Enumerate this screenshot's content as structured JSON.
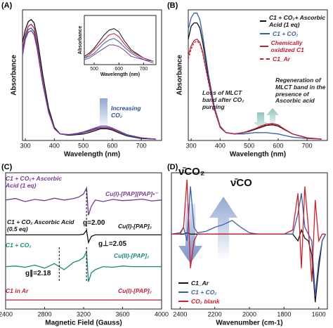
{
  "chart_data": [
    {
      "type": "line",
      "label": "(A)",
      "xlabel": "Wavelength (nm)",
      "ylabel": "Absorbance",
      "xlim": [
        290,
        770
      ],
      "xticks": [
        300,
        400,
        500,
        600,
        700
      ],
      "ylim": [
        0,
        2.0
      ],
      "x": [
        290,
        300,
        310,
        320,
        330,
        340,
        360,
        380,
        400,
        420,
        450,
        480,
        500,
        520,
        540,
        560,
        580,
        600,
        620,
        650,
        700,
        750
      ],
      "series": [
        {
          "color": "#111111",
          "values": [
            1.5,
            1.7,
            1.82,
            1.85,
            1.8,
            1.6,
            1.0,
            0.5,
            0.2,
            0.1,
            0.08,
            0.09,
            0.1,
            0.12,
            0.15,
            0.18,
            0.18,
            0.16,
            0.12,
            0.07,
            0.03,
            0.02
          ]
        },
        {
          "color": "#c0203a",
          "values": [
            1.4,
            1.62,
            1.75,
            1.78,
            1.72,
            1.5,
            0.9,
            0.45,
            0.18,
            0.1,
            0.09,
            0.1,
            0.12,
            0.14,
            0.17,
            0.19,
            0.19,
            0.17,
            0.13,
            0.08,
            0.04,
            0.02
          ]
        },
        {
          "color": "#3a5fb0",
          "values": [
            1.35,
            1.58,
            1.7,
            1.72,
            1.66,
            1.45,
            0.88,
            0.44,
            0.18,
            0.1,
            0.09,
            0.1,
            0.12,
            0.15,
            0.18,
            0.2,
            0.2,
            0.18,
            0.14,
            0.08,
            0.04,
            0.02
          ]
        },
        {
          "color": "#7a3a9a",
          "values": [
            1.3,
            1.55,
            1.66,
            1.68,
            1.62,
            1.42,
            0.86,
            0.43,
            0.18,
            0.1,
            0.09,
            0.11,
            0.13,
            0.16,
            0.19,
            0.22,
            0.22,
            0.19,
            0.15,
            0.09,
            0.04,
            0.02
          ]
        }
      ],
      "annotations": [
        {
          "text": "Increasing CO₂",
          "color": "#2a4fa0"
        }
      ],
      "inset": {
        "type": "line",
        "xlabel": "Wavelength (nm)",
        "ylabel": "Absorbance",
        "xlim": [
          460,
          750
        ],
        "xticks": [
          500,
          600,
          700
        ],
        "ylim": [
          0,
          0.3
        ],
        "x": [
          460,
          480,
          500,
          520,
          540,
          560,
          580,
          600,
          620,
          650,
          700,
          740
        ],
        "series": [
          {
            "color": "#111111",
            "values": [
              0.05,
              0.07,
              0.1,
              0.14,
              0.18,
              0.21,
              0.22,
              0.2,
              0.15,
              0.09,
              0.04,
              0.02
            ]
          },
          {
            "color": "#c0203a",
            "values": [
              0.04,
              0.06,
              0.09,
              0.12,
              0.15,
              0.18,
              0.19,
              0.17,
              0.13,
              0.08,
              0.04,
              0.02
            ]
          },
          {
            "color": "#3a5fb0",
            "values": [
              0.04,
              0.05,
              0.07,
              0.1,
              0.13,
              0.15,
              0.16,
              0.14,
              0.11,
              0.07,
              0.03,
              0.02
            ]
          },
          {
            "color": "#7a3a9a",
            "values": [
              0.03,
              0.04,
              0.06,
              0.08,
              0.1,
              0.12,
              0.12,
              0.11,
              0.09,
              0.05,
              0.03,
              0.01
            ]
          }
        ]
      }
    },
    {
      "type": "line",
      "label": "(B)",
      "xlabel": "Wavelength (nm)",
      "ylabel": "Absorbance",
      "xlim": [
        290,
        770
      ],
      "xticks": [
        300,
        400,
        500,
        600,
        700
      ],
      "ylim": [
        0,
        2.0
      ],
      "legend": "upper right",
      "x": [
        290,
        300,
        310,
        320,
        330,
        340,
        360,
        380,
        400,
        420,
        450,
        480,
        500,
        520,
        540,
        560,
        580,
        600,
        620,
        650,
        700,
        750
      ],
      "series": [
        {
          "name": "C1 + CO₂+ Ascorbic Acid (1 eq)",
          "color": "#111111",
          "values": [
            1.55,
            1.75,
            1.8,
            1.8,
            1.72,
            1.5,
            0.95,
            0.5,
            0.2,
            0.12,
            0.1,
            0.12,
            0.14,
            0.17,
            0.2,
            0.23,
            0.24,
            0.22,
            0.17,
            0.1,
            0.04,
            0.02
          ]
        },
        {
          "name": "C1 + CO₂",
          "color": "#3a5fb0",
          "values": [
            1.7,
            1.88,
            1.95,
            1.95,
            1.85,
            1.6,
            1.0,
            0.52,
            0.22,
            0.12,
            0.1,
            0.1,
            0.11,
            0.12,
            0.12,
            0.12,
            0.11,
            0.1,
            0.08,
            0.05,
            0.03,
            0.02
          ]
        },
        {
          "name": "Chemically oxidized C1",
          "color": "#c0203a",
          "values": [
            1.3,
            1.45,
            1.53,
            1.55,
            1.5,
            1.35,
            0.9,
            0.48,
            0.2,
            0.12,
            0.1,
            0.12,
            0.15,
            0.18,
            0.22,
            0.25,
            0.26,
            0.24,
            0.18,
            0.1,
            0.04,
            0.02
          ]
        },
        {
          "name": "C1_Ar",
          "color": "#c0203a",
          "dashed": true,
          "values": [
            1.25,
            1.4,
            1.5,
            1.52,
            1.48,
            1.33,
            0.88,
            0.47,
            0.2,
            0.12,
            0.1,
            0.12,
            0.15,
            0.18,
            0.21,
            0.24,
            0.25,
            0.23,
            0.17,
            0.1,
            0.04,
            0.02
          ]
        }
      ],
      "annotations": [
        {
          "text": "Loss of MLCT band after CO₂ purging",
          "color": "#222222"
        },
        {
          "text": "Regeneration of MLCT band in the presence of Ascorbic acid",
          "color": "#222222"
        }
      ]
    },
    {
      "type": "line",
      "label": "(C)",
      "xlabel": "Magnetic Field (Gauss)",
      "xlim": [
        2400,
        4000
      ],
      "xticks": [
        2400,
        2800,
        3200,
        3600,
        4000
      ],
      "ylim": [
        0,
        4.5
      ],
      "x": [
        2400,
        2500,
        2600,
        2700,
        2800,
        2900,
        3000,
        3100,
        3150,
        3200,
        3230,
        3250,
        3280,
        3320,
        3400,
        3500,
        3600,
        3700,
        3800,
        3900,
        4000
      ],
      "series": [
        {
          "color": "#7a3a9a",
          "values": [
            3.6,
            3.65,
            3.55,
            3.62,
            3.58,
            3.66,
            3.6,
            3.65,
            3.7,
            3.8,
            4.0,
            3.1,
            3.4,
            3.6,
            3.55,
            3.62,
            3.58,
            3.6,
            3.63,
            3.57,
            3.6
          ]
        },
        {
          "color": "#111111",
          "values": [
            2.45,
            2.45,
            2.45,
            2.45,
            2.45,
            2.45,
            2.45,
            2.45,
            2.45,
            2.47,
            2.6,
            2.2,
            2.4,
            2.45,
            2.45,
            2.45,
            2.45,
            2.45,
            2.45,
            2.45,
            2.45
          ]
        },
        {
          "color": "#1a8a7a",
          "values": [
            1.4,
            1.42,
            1.38,
            1.45,
            1.35,
            1.5,
            1.3,
            1.55,
            1.6,
            1.7,
            1.9,
            0.9,
            1.2,
            1.3,
            1.4,
            1.38,
            1.42,
            1.4,
            1.4,
            1.4,
            1.4
          ]
        },
        {
          "color": "#c0203a",
          "values": [
            0.3,
            0.3,
            0.3,
            0.3,
            0.3,
            0.3,
            0.3,
            0.3,
            0.3,
            0.3,
            0.3,
            0.3,
            0.3,
            0.3,
            0.3,
            0.3,
            0.3,
            0.3,
            0.3,
            0.3,
            0.3
          ]
        }
      ],
      "annotations": [
        {
          "text": "C1 + CO₂+ Ascorbic Acid (1 eq)",
          "color": "#7a3a9a"
        },
        {
          "text": "Cu(I)-[PAP][PAP]•⁻",
          "color": "#7a3a9a"
        },
        {
          "text": "C1 + CO₂ Ascorbic Acid (0.5 eq)",
          "color": "#111111"
        },
        {
          "text": "g=2.00",
          "color": "#111111"
        },
        {
          "text": "Cu(I)-[PAP]₂",
          "color": "#111111"
        },
        {
          "text": "C1 + CO₂",
          "color": "#1a8a7a"
        },
        {
          "text": "g⊥=2.05",
          "color": "#111111"
        },
        {
          "text": "Cu(II)-[PAP]₂",
          "color": "#1a8a7a"
        },
        {
          "text": "g∥=2.18",
          "color": "#111111"
        },
        {
          "text": "C1 in Ar",
          "color": "#c0203a"
        },
        {
          "text": "Cu(I)-[PAP]₂",
          "color": "#c0203a"
        }
      ]
    },
    {
      "type": "line",
      "label": "(D)",
      "xlabel": "Wavenumber (cm-1)",
      "xlim": [
        2450,
        1550
      ],
      "xticks": [
        2400,
        2200,
        2000,
        1800,
        1600
      ],
      "ylim": [
        0,
        1
      ],
      "legend": "lower left",
      "x": [
        2450,
        2400,
        2380,
        2360,
        2340,
        2320,
        2300,
        2250,
        2200,
        2150,
        2100,
        2050,
        2000,
        1950,
        1900,
        1850,
        1800,
        1750,
        1720,
        1700,
        1680,
        1660,
        1640,
        1620,
        1600,
        1580,
        1560
      ],
      "series": [
        {
          "name": "C1_Ar",
          "color": "#111111",
          "values": [
            0.55,
            0.55,
            0.55,
            0.56,
            0.55,
            0.55,
            0.55,
            0.55,
            0.55,
            0.55,
            0.55,
            0.55,
            0.55,
            0.55,
            0.55,
            0.55,
            0.55,
            0.55,
            0.5,
            0.58,
            0.52,
            0.5,
            0.4,
            0.05,
            0.3,
            0.5,
            0.55
          ]
        },
        {
          "name": "C1 + CO₂",
          "color": "#3a5fb0",
          "values": [
            0.55,
            0.56,
            0.6,
            0.5,
            0.9,
            0.6,
            0.56,
            0.57,
            0.6,
            0.62,
            0.65,
            0.6,
            0.56,
            0.55,
            0.55,
            0.55,
            0.55,
            0.55,
            0.7,
            0.85,
            0.6,
            0.55,
            0.5,
            0.1,
            0.35,
            0.5,
            0.55
          ]
        },
        {
          "name": "CO₂ blank",
          "color": "#d0202a",
          "values": [
            0.55,
            0.55,
            0.6,
            0.95,
            0.3,
            0.5,
            0.55,
            0.55,
            0.55,
            0.55,
            0.55,
            0.55,
            0.55,
            0.55,
            0.55,
            0.55,
            0.55,
            0.58,
            0.85,
            0.3,
            0.9,
            0.6,
            0.2,
            0.8,
            0.5,
            0.55,
            0.55
          ]
        }
      ],
      "annotations": [
        {
          "text": "ν̄CO₂",
          "color": "#111111"
        },
        {
          "text": "ν̄CO",
          "color": "#111111"
        }
      ]
    }
  ]
}
